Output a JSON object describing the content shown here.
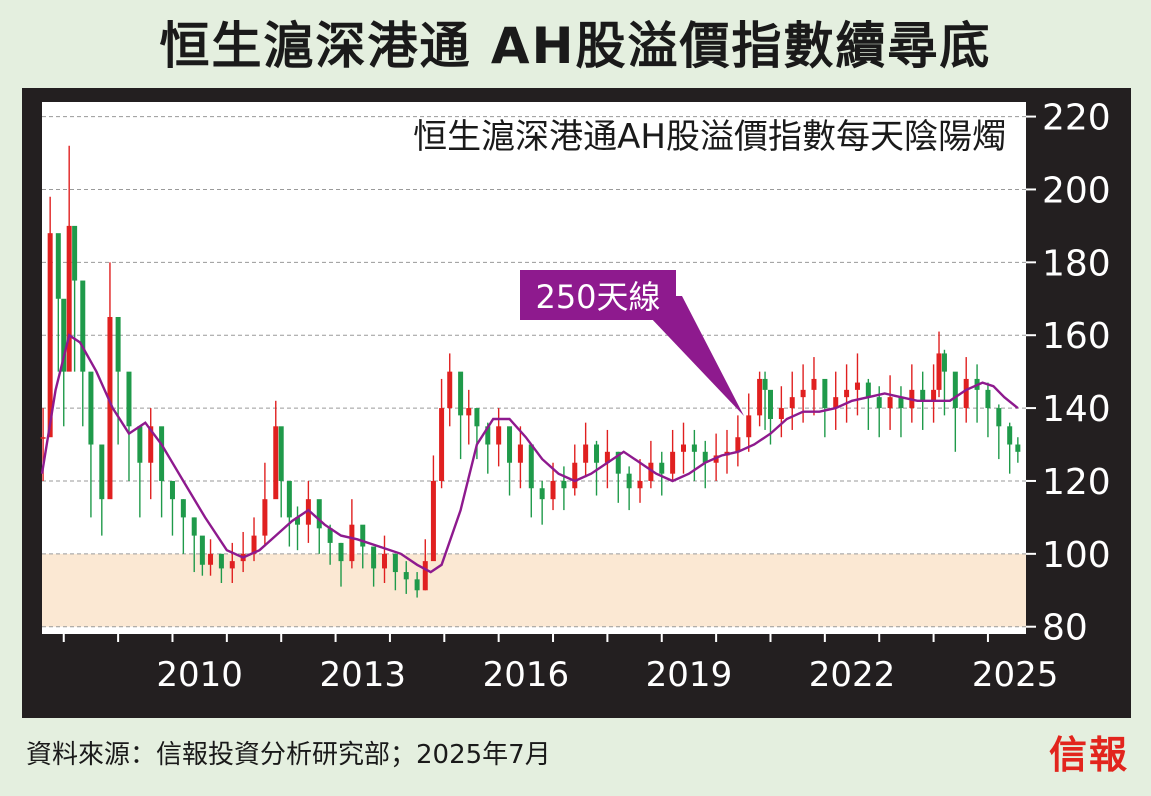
{
  "title": "恒生滬深港通 AH股溢價指數續尋底",
  "source": "資料來源：信報投資分析研究部；2025年7月",
  "logo": "信報",
  "colors": {
    "background": "#e4efdf",
    "frame": "#231f20",
    "plot_bg": "#ffffff",
    "shaded_zone": "#fbe8d3",
    "candle_up": "#e02020",
    "candle_down": "#1f9a4a",
    "ma_line": "#8e1a8e",
    "callout_bg": "#8e1a8e",
    "callout_text": "#ffffff"
  },
  "chart_data": {
    "type": "line",
    "title": "恒生滬深港通AH股溢價指數每天陰陽燭",
    "xlabel": "",
    "ylabel": "",
    "xlim": [
      2007.6,
      2025.7
    ],
    "ylim": [
      78,
      224
    ],
    "y_ticks": [
      80,
      100,
      120,
      140,
      160,
      180,
      200,
      220
    ],
    "y_tick_labels": [
      "80",
      "100",
      "120",
      "140",
      "160",
      "180",
      "200",
      "220"
    ],
    "x_ticks": [
      2010,
      2013,
      2016,
      2019,
      2022,
      2025
    ],
    "x_tick_labels": [
      "2010",
      "2013",
      "2016",
      "2019",
      "2022",
      "2025"
    ],
    "grid": "horizontal-dashed",
    "shaded_band": [
      80,
      100
    ],
    "annotation": "250天線",
    "series": [
      {
        "name": "恒生滬深港通AH股溢價指數每天陰陽燭",
        "style": "candlestick",
        "x": [
          2007.62,
          2007.75,
          2007.9,
          2008.0,
          2008.1,
          2008.2,
          2008.35,
          2008.5,
          2008.7,
          2008.85,
          2009.0,
          2009.2,
          2009.4,
          2009.6,
          2009.8,
          2010.0,
          2010.2,
          2010.4,
          2010.55,
          2010.7,
          2010.9,
          2011.1,
          2011.3,
          2011.5,
          2011.7,
          2011.9,
          2012.0,
          2012.15,
          2012.3,
          2012.5,
          2012.7,
          2012.9,
          2013.1,
          2013.3,
          2013.5,
          2013.7,
          2013.9,
          2014.1,
          2014.3,
          2014.5,
          2014.65,
          2014.8,
          2014.95,
          2015.1,
          2015.3,
          2015.45,
          2015.6,
          2015.8,
          2016.0,
          2016.2,
          2016.4,
          2016.6,
          2016.8,
          2017.0,
          2017.2,
          2017.4,
          2017.6,
          2017.8,
          2018.0,
          2018.2,
          2018.4,
          2018.6,
          2018.8,
          2019.0,
          2019.2,
          2019.4,
          2019.6,
          2019.8,
          2020.0,
          2020.2,
          2020.4,
          2020.6,
          2020.8,
          2020.9,
          2021.0,
          2021.2,
          2021.4,
          2021.6,
          2021.8,
          2022.0,
          2022.2,
          2022.4,
          2022.6,
          2022.8,
          2023.0,
          2023.2,
          2023.4,
          2023.6,
          2023.8,
          2024.0,
          2024.1,
          2024.2,
          2024.4,
          2024.6,
          2024.8,
          2025.0,
          2025.2,
          2025.4,
          2025.55
        ],
        "close": [
          132,
          188,
          170,
          150,
          190,
          175,
          150,
          130,
          115,
          165,
          150,
          135,
          125,
          135,
          120,
          115,
          110,
          105,
          97,
          100,
          96,
          98,
          100,
          105,
          115,
          135,
          120,
          110,
          108,
          115,
          107,
          103,
          98,
          108,
          102,
          96,
          100,
          95,
          93,
          90,
          98,
          120,
          140,
          150,
          138,
          140,
          135,
          130,
          135,
          125,
          130,
          118,
          115,
          120,
          118,
          125,
          130,
          125,
          128,
          122,
          118,
          120,
          125,
          122,
          128,
          130,
          128,
          125,
          127,
          128,
          132,
          138,
          148,
          145,
          137,
          140,
          143,
          145,
          148,
          140,
          143,
          145,
          147,
          143,
          140,
          143,
          140,
          145,
          142,
          145,
          155,
          150,
          140,
          148,
          145,
          140,
          135,
          130,
          128
        ],
        "high": [
          140,
          198,
          178,
          160,
          212,
          182,
          160,
          140,
          125,
          180,
          160,
          145,
          130,
          140,
          125,
          120,
          115,
          110,
          102,
          104,
          100,
          103,
          106,
          110,
          125,
          142,
          125,
          116,
          113,
          120,
          112,
          108,
          103,
          115,
          107,
          101,
          105,
          100,
          98,
          95,
          104,
          127,
          148,
          155,
          144,
          145,
          140,
          136,
          140,
          130,
          135,
          124,
          120,
          125,
          124,
          130,
          136,
          131,
          134,
          128,
          124,
          126,
          131,
          128,
          134,
          136,
          134,
          131,
          133,
          134,
          138,
          144,
          150,
          150,
          142,
          146,
          150,
          152,
          154,
          146,
          150,
          152,
          155,
          148,
          146,
          149,
          146,
          152,
          150,
          152,
          161,
          156,
          146,
          154,
          152,
          147,
          141,
          136,
          132
        ],
        "low": [
          120,
          155,
          150,
          135,
          160,
          150,
          135,
          110,
          105,
          130,
          130,
          120,
          110,
          115,
          110,
          105,
          100,
          95,
          94,
          94,
          92,
          92,
          95,
          98,
          102,
          118,
          110,
          102,
          101,
          103,
          100,
          97,
          91,
          96,
          96,
          91,
          92,
          90,
          89,
          88,
          90,
          104,
          118,
          135,
          126,
          130,
          126,
          122,
          124,
          116,
          118,
          110,
          108,
          112,
          112,
          116,
          121,
          116,
          118,
          114,
          112,
          114,
          118,
          116,
          120,
          122,
          120,
          118,
          120,
          122,
          124,
          128,
          135,
          134,
          130,
          132,
          134,
          136,
          138,
          132,
          134,
          136,
          138,
          134,
          132,
          134,
          132,
          136,
          134,
          136,
          143,
          138,
          128,
          136,
          136,
          132,
          126,
          122,
          125
        ]
      },
      {
        "name": "250天線",
        "style": "line",
        "x": [
          2007.6,
          2007.85,
          2008.1,
          2008.3,
          2008.6,
          2008.9,
          2009.2,
          2009.5,
          2009.8,
          2010.2,
          2010.6,
          2011.0,
          2011.3,
          2011.6,
          2011.9,
          2012.2,
          2012.5,
          2012.8,
          2013.1,
          2013.4,
          2013.8,
          2014.2,
          2014.5,
          2014.75,
          2014.95,
          2015.3,
          2015.6,
          2015.9,
          2016.2,
          2016.5,
          2016.8,
          2017.1,
          2017.4,
          2017.7,
          2018.0,
          2018.3,
          2018.6,
          2018.9,
          2019.2,
          2019.5,
          2019.8,
          2020.1,
          2020.4,
          2020.7,
          2021.0,
          2021.3,
          2021.6,
          2021.9,
          2022.2,
          2022.5,
          2022.8,
          2023.1,
          2023.4,
          2023.7,
          2024.0,
          2024.3,
          2024.6,
          2024.9,
          2025.1,
          2025.3,
          2025.55
        ],
        "values": [
          122,
          145,
          160,
          158,
          150,
          140,
          133,
          136,
          130,
          120,
          110,
          101,
          99,
          101,
          105,
          109,
          112,
          108,
          105,
          104,
          102,
          100,
          97,
          95,
          97,
          112,
          130,
          137,
          137,
          132,
          126,
          122,
          120,
          122,
          125,
          128,
          125,
          122,
          120,
          122,
          125,
          127,
          128,
          130,
          133,
          137,
          139,
          139,
          140,
          142,
          143,
          144,
          143,
          142,
          142,
          142,
          145,
          147,
          146,
          143,
          140
        ]
      }
    ]
  }
}
